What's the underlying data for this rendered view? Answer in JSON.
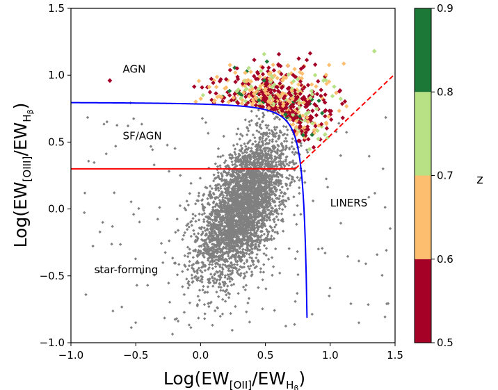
{
  "chart_data": {
    "type": "scatter",
    "xlabel_main": "Log(EW",
    "xlabel_sub1": "[OII]",
    "xlabel_mid": "/EW",
    "xlabel_sub2": "H",
    "xlabel_subsub": "β",
    "xlabel_end": ")",
    "ylabel_main": "Log(EW",
    "ylabel_sub1": "[OIII]",
    "ylabel_mid": "/EW",
    "ylabel_sub2": "H",
    "ylabel_subsub": "β",
    "ylabel_end": ")",
    "xlim": [
      -1.0,
      1.5
    ],
    "ylim": [
      -1.0,
      1.5
    ],
    "xticks": [
      "−1.0",
      "−0.5",
      "0.0",
      "0.5",
      "1.0",
      "1.5"
    ],
    "yticks": [
      "−1.0",
      "−0.5",
      "0.0",
      "0.5",
      "1.0",
      "1.5"
    ],
    "xtick_values": [
      -1.0,
      -0.5,
      0.0,
      0.5,
      1.0,
      1.5
    ],
    "ytick_values": [
      -1.0,
      -0.5,
      0.0,
      0.5,
      1.0,
      1.5
    ],
    "region_labels": [
      {
        "text": "AGN",
        "x": -0.6,
        "y": 1.02
      },
      {
        "text": "SF/AGN",
        "x": -0.6,
        "y": 0.52
      },
      {
        "text": "LINERS",
        "x": 1.0,
        "y": 0.02
      },
      {
        "text": "star-forming",
        "x": -0.82,
        "y": -0.48
      }
    ],
    "colorbar": {
      "label": "z",
      "ticks": [
        "0.5",
        "0.6",
        "0.7",
        "0.8",
        "0.9"
      ],
      "tick_values": [
        0.5,
        0.6,
        0.7,
        0.8,
        0.9
      ],
      "range": [
        0.5,
        0.9
      ],
      "bins": [
        {
          "from": 0.5,
          "to": 0.6,
          "color": "#a50026"
        },
        {
          "from": 0.6,
          "to": 0.7,
          "color": "#fdbf6f"
        },
        {
          "from": 0.7,
          "to": 0.8,
          "color": "#b8e186"
        },
        {
          "from": 0.8,
          "to": 0.9,
          "color": "#1b7837"
        }
      ]
    },
    "lines": [
      {
        "name": "blue demarcation curve",
        "color": "#0000ff",
        "style": "solid"
      },
      {
        "name": "red horizontal line y=0.3",
        "color": "#ff0000",
        "style": "solid",
        "x": [
          -1.0,
          0.73
        ],
        "y": [
          0.3,
          0.3
        ]
      },
      {
        "name": "red dashed line",
        "color": "#ff0000",
        "style": "dashed",
        "x": [
          0.73,
          1.5
        ],
        "y": [
          0.3,
          1.01
        ]
      }
    ],
    "series": [
      {
        "role": "background sample",
        "color": "#808080",
        "marker": "diamond",
        "approx_count": 4000
      },
      {
        "role": "AGN sample colored by z",
        "marker": "diamond",
        "approx_count": 600
      }
    ],
    "grid": false
  }
}
